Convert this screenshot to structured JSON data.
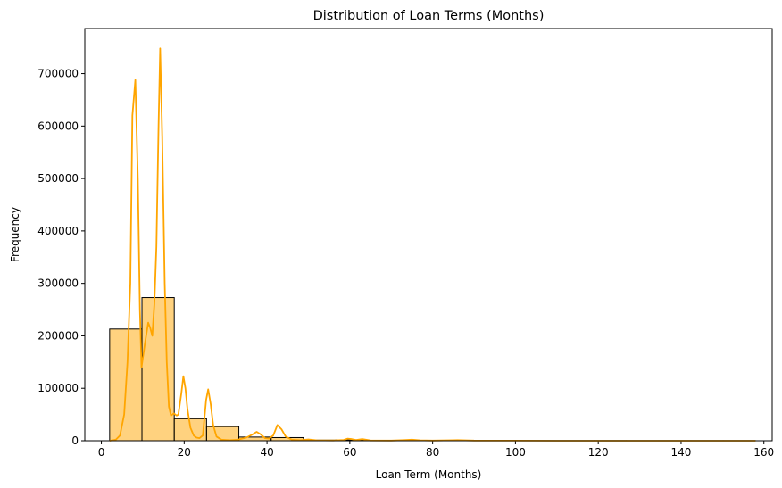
{
  "chart_data": {
    "type": "bar",
    "title": "Distribution of Loan Terms (Months)",
    "xlabel": "Loan Term (Months)",
    "ylabel": "Frequency",
    "xlim": [
      -4,
      162
    ],
    "ylim": [
      0,
      786000
    ],
    "xticks": [
      0,
      20,
      40,
      60,
      80,
      100,
      120,
      140,
      160
    ],
    "yticks": [
      0,
      100000,
      200000,
      300000,
      400000,
      500000,
      600000,
      700000
    ],
    "grid": false,
    "bar_fill": "#ffa500",
    "bar_fill_opacity": 0.5,
    "bar_edge": "#000000",
    "kde_color": "#ffa500",
    "bins": [
      {
        "x0": 2,
        "x1": 9.8,
        "value": 213000
      },
      {
        "x0": 9.8,
        "x1": 17.6,
        "value": 273000
      },
      {
        "x0": 17.6,
        "x1": 25.4,
        "value": 42000
      },
      {
        "x0": 25.4,
        "x1": 33.2,
        "value": 27000
      },
      {
        "x0": 33.2,
        "x1": 41,
        "value": 7000
      },
      {
        "x0": 41,
        "x1": 48.8,
        "value": 6000
      },
      {
        "x0": 48.8,
        "x1": 56.6,
        "value": 1200
      },
      {
        "x0": 56.6,
        "x1": 64.4,
        "value": 1500
      },
      {
        "x0": 64.4,
        "x1": 72.2,
        "value": 600
      },
      {
        "x0": 72.2,
        "x1": 80,
        "value": 500
      },
      {
        "x0": 80,
        "x1": 87.8,
        "value": 300
      },
      {
        "x0": 87.8,
        "x1": 95.6,
        "value": 200
      },
      {
        "x0": 95.6,
        "x1": 103.4,
        "value": 100
      },
      {
        "x0": 103.4,
        "x1": 111.2,
        "value": 100
      },
      {
        "x0": 111.2,
        "x1": 119,
        "value": 100
      },
      {
        "x0": 119,
        "x1": 126.8,
        "value": 100
      },
      {
        "x0": 126.8,
        "x1": 134.6,
        "value": 50
      },
      {
        "x0": 134.6,
        "x1": 142.4,
        "value": 50
      },
      {
        "x0": 142.4,
        "x1": 150.2,
        "value": 50
      },
      {
        "x0": 150.2,
        "x1": 158,
        "value": 50
      }
    ],
    "kde": [
      [
        2,
        0
      ],
      [
        3.5,
        2000
      ],
      [
        4.5,
        10000
      ],
      [
        5.5,
        50000
      ],
      [
        6.3,
        150000
      ],
      [
        7,
        300000
      ],
      [
        7.5,
        620000
      ],
      [
        8.2,
        688000
      ],
      [
        8.8,
        500000
      ],
      [
        9.3,
        250000
      ],
      [
        9.7,
        140000
      ],
      [
        10.5,
        185000
      ],
      [
        11.3,
        225000
      ],
      [
        11.8,
        215000
      ],
      [
        12.3,
        200000
      ],
      [
        12.8,
        260000
      ],
      [
        13.3,
        370000
      ],
      [
        13.8,
        600000
      ],
      [
        14.2,
        748000
      ],
      [
        14.7,
        580000
      ],
      [
        15.3,
        300000
      ],
      [
        15.8,
        150000
      ],
      [
        16.3,
        65000
      ],
      [
        16.8,
        48000
      ],
      [
        17.5,
        52000
      ],
      [
        18.2,
        48000
      ],
      [
        18.6,
        50000
      ],
      [
        19.3,
        90000
      ],
      [
        19.8,
        123000
      ],
      [
        20.3,
        100000
      ],
      [
        20.8,
        60000
      ],
      [
        21.5,
        25000
      ],
      [
        22.3,
        10000
      ],
      [
        23,
        6000
      ],
      [
        23.7,
        5000
      ],
      [
        24.5,
        10000
      ],
      [
        25.3,
        78000
      ],
      [
        25.8,
        98000
      ],
      [
        26.4,
        70000
      ],
      [
        27,
        30000
      ],
      [
        27.8,
        8000
      ],
      [
        29,
        2000
      ],
      [
        31,
        1000
      ],
      [
        33,
        2000
      ],
      [
        35,
        6000
      ],
      [
        36.5,
        12000
      ],
      [
        37.5,
        17000
      ],
      [
        38.5,
        12000
      ],
      [
        39.5,
        5000
      ],
      [
        40.5,
        4000
      ],
      [
        41.5,
        10000
      ],
      [
        42.5,
        30000
      ],
      [
        43.5,
        22000
      ],
      [
        44.5,
        8000
      ],
      [
        46,
        2000
      ],
      [
        48,
        1000
      ],
      [
        50,
        2500
      ],
      [
        52,
        800
      ],
      [
        56,
        500
      ],
      [
        58.5,
        1500
      ],
      [
        59.5,
        4000
      ],
      [
        60.5,
        3000
      ],
      [
        61.5,
        1500
      ],
      [
        63,
        3000
      ],
      [
        65,
        500
      ],
      [
        70,
        300
      ],
      [
        73,
        1200
      ],
      [
        75,
        2000
      ],
      [
        77,
        800
      ],
      [
        80,
        300
      ],
      [
        86,
        1200
      ],
      [
        90,
        300
      ],
      [
        100,
        100
      ],
      [
        110,
        50
      ],
      [
        120,
        50
      ],
      [
        130,
        50
      ],
      [
        140,
        50
      ],
      [
        150,
        50
      ],
      [
        158,
        50
      ]
    ]
  }
}
